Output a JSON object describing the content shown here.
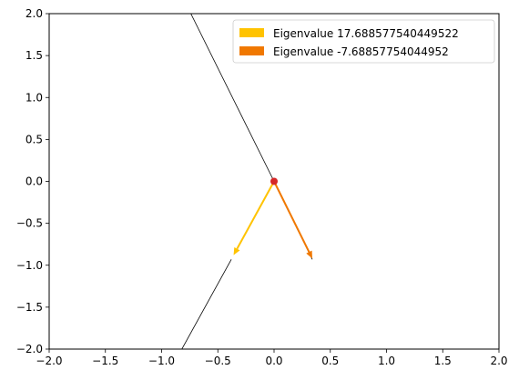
{
  "chart_data": {
    "type": "vector-plot",
    "title": "",
    "xlabel": "",
    "ylabel": "",
    "xlim": [
      -2.0,
      2.0
    ],
    "ylim": [
      -2.0,
      2.0
    ],
    "grid": false,
    "legend_position": "top-right",
    "x_ticks": [
      "−2.0",
      "−1.5",
      "−1.0",
      "−0.5",
      "0.0",
      "0.5",
      "1.0",
      "1.5",
      "2.0"
    ],
    "y_ticks": [
      "−2.0",
      "−1.5",
      "−1.0",
      "−0.5",
      "0.0",
      "0.5",
      "1.0",
      "1.5",
      "2.0"
    ],
    "origin": {
      "x": 0.0,
      "y": 0.0,
      "color": "#d62728"
    },
    "vectors": [
      {
        "name": "Eigenvalue 17.688577540449522",
        "x": -0.36,
        "y": -0.88,
        "color": "#ffc300"
      },
      {
        "name": "Eigenvalue -7.68857754044952",
        "x": 0.34,
        "y": -0.92,
        "color": "#f07800"
      }
    ],
    "lines": [
      {
        "x": [
          -0.74,
          0.0
        ],
        "y": [
          2.0,
          0.0
        ],
        "color": "#000000"
      },
      {
        "x": [
          0.0,
          0.34
        ],
        "y": [
          0.0,
          -0.93
        ],
        "color": "#000000"
      },
      {
        "x": [
          -0.38,
          -0.82
        ],
        "y": [
          -0.93,
          -2.0
        ],
        "color": "#000000"
      }
    ]
  }
}
